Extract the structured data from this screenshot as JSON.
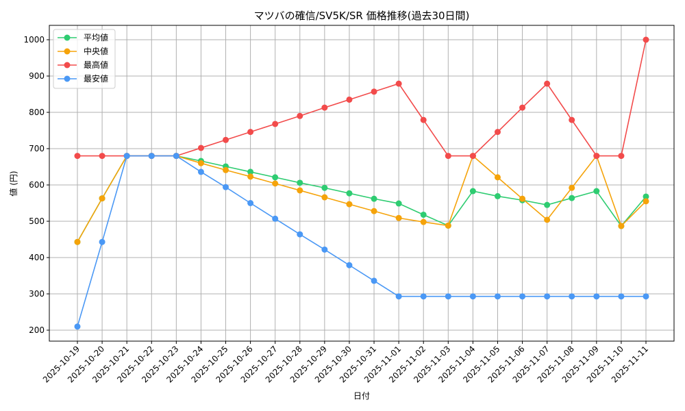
{
  "chart_data": {
    "type": "line",
    "title": "マツバの確信/SV5K/SR 価格推移(過去30日間)",
    "xlabel": "日付",
    "ylabel": "値 (円)",
    "ylim": [
      170,
      1040
    ],
    "yticks": [
      200,
      300,
      400,
      500,
      600,
      700,
      800,
      900,
      1000
    ],
    "grid": true,
    "legend_position": "upper left",
    "categories": [
      "2025-10-19",
      "2025-10-20",
      "2025-10-21",
      "2025-10-22",
      "2025-10-23",
      "2025-10-24",
      "2025-10-25",
      "2025-10-26",
      "2025-10-27",
      "2025-10-28",
      "2025-10-29",
      "2025-10-30",
      "2025-10-31",
      "2025-11-01",
      "2025-11-02",
      "2025-11-03",
      "2025-11-04",
      "2025-11-05",
      "2025-11-06",
      "2025-11-07",
      "2025-11-08",
      "2025-11-09",
      "2025-11-10",
      "2025-11-11"
    ],
    "series": [
      {
        "name": "平均値",
        "color": "#2ecc71",
        "values": [
          443,
          563,
          680,
          680,
          680,
          666,
          651,
          636,
          621,
          606,
          592,
          577,
          562,
          549,
          518,
          488,
          583,
          569,
          558,
          545,
          564,
          583,
          487,
          568
        ]
      },
      {
        "name": "中央値",
        "color": "#f5a30a",
        "values": [
          443,
          563,
          680,
          680,
          680,
          660,
          641,
          623,
          604,
          585,
          566,
          547,
          528,
          509,
          498,
          488,
          680,
          621,
          562,
          504,
          592,
          680,
          487,
          555
        ]
      },
      {
        "name": "最高値",
        "color": "#f24b4b",
        "values": [
          680,
          680,
          680,
          680,
          680,
          702,
          724,
          746,
          768,
          790,
          813,
          835,
          857,
          879,
          779,
          680,
          680,
          746,
          813,
          879,
          779,
          680,
          680,
          1000
        ]
      },
      {
        "name": "最安値",
        "color": "#4a98f5",
        "values": [
          210,
          443,
          680,
          680,
          680,
          636,
          594,
          550,
          507,
          464,
          422,
          379,
          336,
          293,
          293,
          293,
          293,
          293,
          293,
          293,
          293,
          293,
          293,
          293
        ]
      }
    ]
  }
}
